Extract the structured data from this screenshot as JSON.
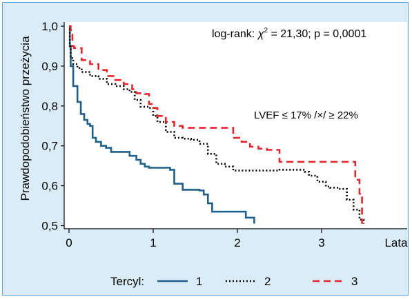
{
  "colors": {
    "background": "#d9ecf8",
    "border": "#5aa9dc",
    "plot_background": "#ffffff",
    "series_1": "#1f5f8b",
    "series_2": "#000000",
    "series_3": "#e8232a"
  },
  "chart_data": {
    "type": "line",
    "step": true,
    "title": "",
    "xlabel": "Lata",
    "ylabel": "Prawdopodobieństwo przeżycia",
    "xlim": [
      0,
      3.9
    ],
    "ylim": [
      0.49,
      1.01
    ],
    "xticks": [
      0,
      1,
      2,
      3
    ],
    "yticks": [
      0.5,
      0.6,
      0.7,
      0.8,
      0.9,
      1.0
    ],
    "ytick_labels": [
      "0,5",
      "0,6",
      "0,7",
      "0,8",
      "0,9",
      "1,0"
    ],
    "annotations": {
      "logrank_prefix": "log-rank: ",
      "logrank_chi": "χ",
      "logrank_sup": "2",
      "logrank_suffix": " = 21,30; p = 0,0001",
      "lvef": "LVEF ≤ 17% /×/ ≥ 22%"
    },
    "legend": {
      "title": "Tercyl:",
      "placement": "bottom"
    },
    "series": [
      {
        "name": "1",
        "style": "solid",
        "points": [
          [
            0,
            1.0
          ],
          [
            0.01,
            0.95
          ],
          [
            0.02,
            0.9
          ],
          [
            0.05,
            0.85
          ],
          [
            0.1,
            0.81
          ],
          [
            0.14,
            0.78
          ],
          [
            0.18,
            0.765
          ],
          [
            0.22,
            0.755
          ],
          [
            0.25,
            0.75
          ],
          [
            0.28,
            0.72
          ],
          [
            0.32,
            0.71
          ],
          [
            0.38,
            0.7
          ],
          [
            0.44,
            0.695
          ],
          [
            0.5,
            0.685
          ],
          [
            0.65,
            0.685
          ],
          [
            0.72,
            0.675
          ],
          [
            0.8,
            0.665
          ],
          [
            0.85,
            0.655
          ],
          [
            0.9,
            0.648
          ],
          [
            0.95,
            0.645
          ],
          [
            1.1,
            0.645
          ],
          [
            1.2,
            0.64
          ],
          [
            1.25,
            0.605
          ],
          [
            1.3,
            0.605
          ],
          [
            1.35,
            0.59
          ],
          [
            1.55,
            0.588
          ],
          [
            1.6,
            0.578
          ],
          [
            1.65,
            0.556
          ],
          [
            1.7,
            0.535
          ],
          [
            1.8,
            0.535
          ],
          [
            2.0,
            0.535
          ],
          [
            2.1,
            0.52
          ],
          [
            2.2,
            0.505
          ]
        ]
      },
      {
        "name": "2",
        "style": "dotted",
        "points": [
          [
            0,
            1.0
          ],
          [
            0.01,
            0.95
          ],
          [
            0.02,
            0.92
          ],
          [
            0.05,
            0.905
          ],
          [
            0.1,
            0.895
          ],
          [
            0.15,
            0.885
          ],
          [
            0.25,
            0.875
          ],
          [
            0.35,
            0.868
          ],
          [
            0.45,
            0.855
          ],
          [
            0.55,
            0.85
          ],
          [
            0.65,
            0.842
          ],
          [
            0.72,
            0.835
          ],
          [
            0.78,
            0.815
          ],
          [
            0.85,
            0.798
          ],
          [
            0.95,
            0.795
          ],
          [
            1.0,
            0.775
          ],
          [
            1.05,
            0.76
          ],
          [
            1.15,
            0.735
          ],
          [
            1.25,
            0.72
          ],
          [
            1.35,
            0.718
          ],
          [
            1.45,
            0.715
          ],
          [
            1.55,
            0.705
          ],
          [
            1.65,
            0.68
          ],
          [
            1.75,
            0.655
          ],
          [
            1.85,
            0.648
          ],
          [
            1.95,
            0.638
          ],
          [
            2.1,
            0.638
          ],
          [
            2.5,
            0.64
          ],
          [
            2.7,
            0.64
          ],
          [
            2.8,
            0.635
          ],
          [
            2.85,
            0.625
          ],
          [
            2.95,
            0.61
          ],
          [
            3.05,
            0.598
          ],
          [
            3.1,
            0.595
          ],
          [
            3.2,
            0.592
          ],
          [
            3.3,
            0.565
          ],
          [
            3.38,
            0.54
          ],
          [
            3.45,
            0.515
          ],
          [
            3.5,
            0.505
          ]
        ]
      },
      {
        "name": "3",
        "style": "dashed",
        "points": [
          [
            0,
            1.0
          ],
          [
            0.02,
            0.99
          ],
          [
            0.04,
            0.95
          ],
          [
            0.06,
            0.945
          ],
          [
            0.1,
            0.945
          ],
          [
            0.15,
            0.915
          ],
          [
            0.25,
            0.905
          ],
          [
            0.35,
            0.89
          ],
          [
            0.45,
            0.875
          ],
          [
            0.55,
            0.865
          ],
          [
            0.65,
            0.855
          ],
          [
            0.75,
            0.842
          ],
          [
            0.8,
            0.832
          ],
          [
            0.9,
            0.83
          ],
          [
            0.95,
            0.805
          ],
          [
            1.0,
            0.795
          ],
          [
            1.05,
            0.775
          ],
          [
            1.15,
            0.76
          ],
          [
            1.25,
            0.75
          ],
          [
            1.35,
            0.745
          ],
          [
            1.9,
            0.745
          ],
          [
            1.95,
            0.72
          ],
          [
            2.05,
            0.71
          ],
          [
            2.15,
            0.698
          ],
          [
            2.25,
            0.693
          ],
          [
            2.35,
            0.69
          ],
          [
            2.45,
            0.69
          ],
          [
            2.5,
            0.66
          ],
          [
            2.6,
            0.66
          ],
          [
            3.38,
            0.66
          ],
          [
            3.4,
            0.615
          ],
          [
            3.45,
            0.58
          ],
          [
            3.48,
            0.505
          ]
        ]
      }
    ]
  }
}
